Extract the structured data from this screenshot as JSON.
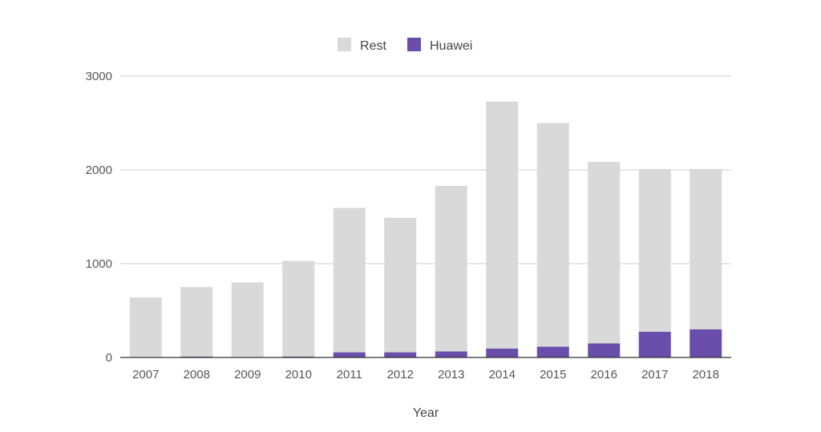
{
  "chart_data": {
    "type": "bar",
    "stacked": true,
    "categories": [
      "2007",
      "2008",
      "2009",
      "2010",
      "2011",
      "2012",
      "2013",
      "2014",
      "2015",
      "2016",
      "2017",
      "2018"
    ],
    "series": [
      {
        "name": "Huawei",
        "color": "#6a4eab",
        "values": [
          0,
          10,
          0,
          10,
          55,
          55,
          65,
          95,
          115,
          150,
          275,
          300
        ]
      },
      {
        "name": "Rest",
        "color": "#d9d9d9",
        "values": [
          640,
          740,
          800,
          1020,
          1540,
          1435,
          1765,
          2635,
          2385,
          1935,
          1735,
          1710
        ]
      }
    ],
    "legend_order": [
      "Rest",
      "Huawei"
    ],
    "legend_position": "top",
    "xlabel": "Year",
    "ylabel": "",
    "ylim": [
      0,
      3000
    ],
    "yticks": [
      0,
      1000,
      2000,
      3000
    ],
    "grid": true
  }
}
